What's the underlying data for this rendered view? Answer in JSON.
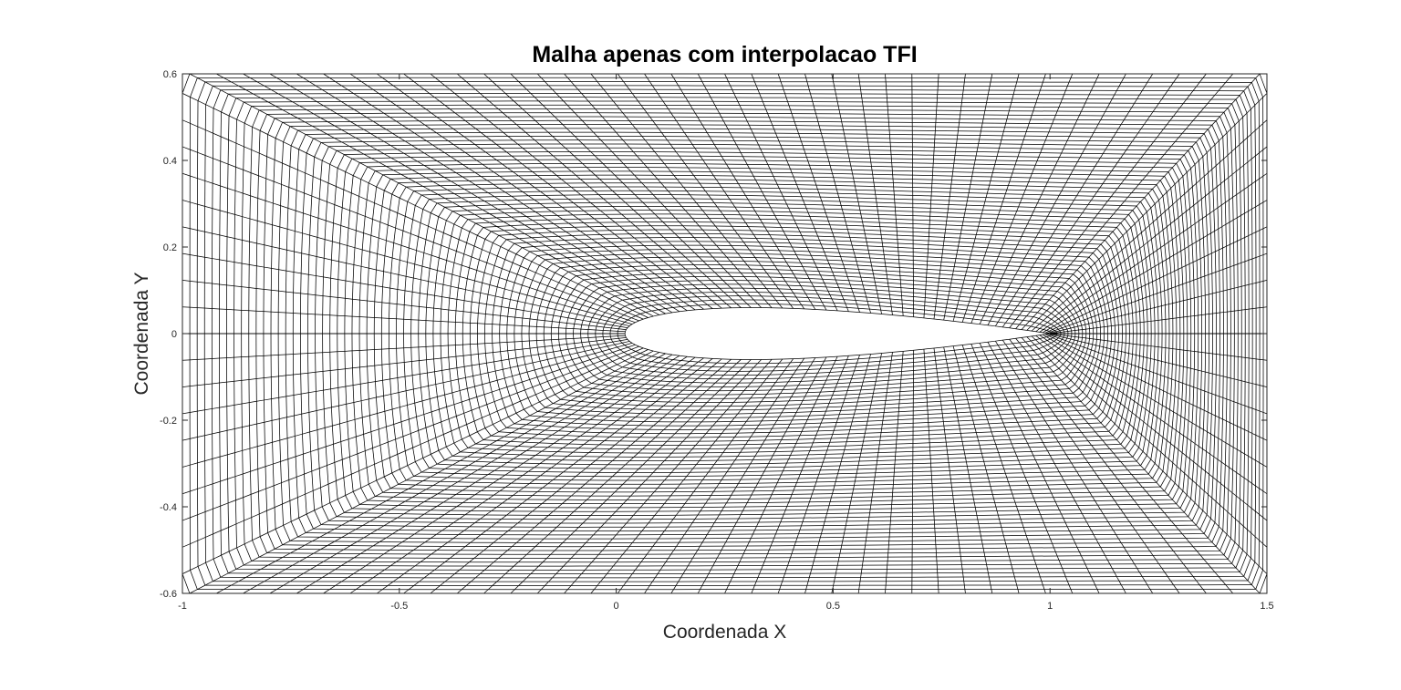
{
  "chart_data": {
    "type": "line",
    "title": "Malha apenas com interpolacao TFI",
    "xlabel": "Coordenada X",
    "ylabel": "Coordenada Y",
    "xlim": [
      -1,
      1.5
    ],
    "ylim": [
      -0.6,
      0.6
    ],
    "xticks": [
      -1,
      -0.5,
      0,
      0.5,
      1,
      1.5
    ],
    "xtick_labels": [
      "-1",
      "-0.5",
      "0",
      "0.5",
      "1",
      "1.5"
    ],
    "yticks": [
      -0.6,
      -0.4,
      -0.2,
      0,
      0.2,
      0.4,
      0.6
    ],
    "ytick_labels": [
      "-0.6",
      "-0.4",
      "-0.2",
      "0",
      "0.2",
      "0.4",
      "0.6"
    ],
    "grid": false,
    "line_color": "#000000",
    "mesh": {
      "description_of_shape": "O-type structured mesh around airfoil built by transfinite interpolation",
      "airfoil_leading_edge_x": 0.02,
      "airfoil_trailing_edge_x": 1.0,
      "airfoil_max_thickness": 0.12,
      "outer_boundary": {
        "xmin": -1,
        "xmax": 1.5,
        "ymin": -0.6,
        "ymax": 0.6
      },
      "n_points_per_side": 60,
      "n_layers": 60
    }
  }
}
